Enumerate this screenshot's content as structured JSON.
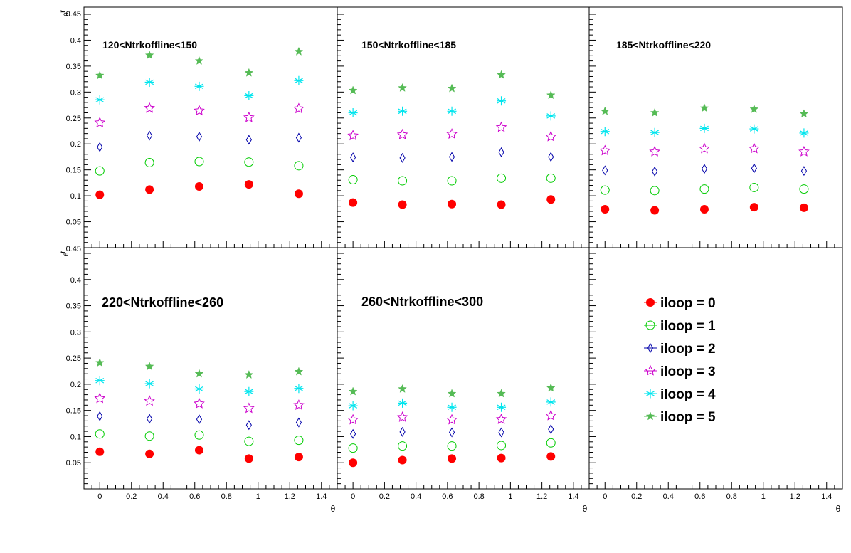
{
  "chart_data": {
    "type": "scatter",
    "x_label": "θ",
    "y_label_top": "r_0",
    "y_label_bottom": "r_θ",
    "x_ticks": [
      "0",
      "0.2",
      "0.4",
      "0.6",
      "0.8",
      "1",
      "1.2",
      "1.4"
    ],
    "y_ticks_top": [
      "0.05",
      "0.1",
      "0.15",
      "0.2",
      "0.25",
      "0.3",
      "0.35",
      "0.4",
      "0.45"
    ],
    "y_ticks_bottom": [
      "0.05",
      "0.1",
      "0.15",
      "0.2",
      "0.25",
      "0.3",
      "0.35",
      "0.4"
    ],
    "x_values": [
      0,
      0.314,
      0.628,
      0.942,
      1.257
    ],
    "xlim": [
      -0.1,
      1.5
    ],
    "ylim": [
      0,
      0.45
    ],
    "grid": false,
    "legend_position": "bottom-right pad",
    "series_styles": [
      {
        "name": "iloop = 0",
        "color": "#ff0000",
        "marker": "filled-circle"
      },
      {
        "name": "iloop = 1",
        "color": "#00cc00",
        "marker": "open-circle"
      },
      {
        "name": "iloop = 2",
        "color": "#0000aa",
        "marker": "open-diamond"
      },
      {
        "name": "iloop = 3",
        "color": "#cc00cc",
        "marker": "open-star"
      },
      {
        "name": "iloop = 4",
        "color": "#00e5ee",
        "marker": "asterisk"
      },
      {
        "name": "iloop = 5",
        "color": "#55bb55",
        "marker": "filled-star"
      }
    ],
    "panels": [
      {
        "label": "120<Ntrkoffline<150",
        "series": [
          [
            0.102,
            0.112,
            0.118,
            0.122,
            0.104
          ],
          [
            0.148,
            0.164,
            0.166,
            0.165,
            0.158
          ],
          [
            0.194,
            0.216,
            0.214,
            0.208,
            0.212
          ],
          [
            0.241,
            0.269,
            0.264,
            0.251,
            0.268
          ],
          [
            0.285,
            0.319,
            0.311,
            0.293,
            0.322
          ],
          [
            0.332,
            0.371,
            0.36,
            0.337,
            0.378
          ]
        ]
      },
      {
        "label": "150<Ntrkoffline<185",
        "series": [
          [
            0.087,
            0.083,
            0.084,
            0.083,
            0.093
          ],
          [
            0.131,
            0.129,
            0.129,
            0.134,
            0.134
          ],
          [
            0.174,
            0.173,
            0.175,
            0.184,
            0.175
          ],
          [
            0.216,
            0.218,
            0.219,
            0.232,
            0.214
          ],
          [
            0.26,
            0.263,
            0.263,
            0.283,
            0.254
          ],
          [
            0.303,
            0.308,
            0.307,
            0.333,
            0.294
          ]
        ]
      },
      {
        "label": "185<Ntrkoffline<220",
        "series": [
          [
            0.074,
            0.072,
            0.074,
            0.078,
            0.077
          ],
          [
            0.111,
            0.11,
            0.113,
            0.116,
            0.113
          ],
          [
            0.149,
            0.147,
            0.152,
            0.153,
            0.148
          ],
          [
            0.187,
            0.185,
            0.191,
            0.191,
            0.185
          ],
          [
            0.224,
            0.222,
            0.23,
            0.229,
            0.221
          ],
          [
            0.263,
            0.26,
            0.269,
            0.267,
            0.258
          ]
        ]
      },
      {
        "label": "220<Ntrkoffline<260",
        "series": [
          [
            0.071,
            0.067,
            0.074,
            0.058,
            0.061
          ],
          [
            0.105,
            0.101,
            0.103,
            0.091,
            0.093
          ],
          [
            0.139,
            0.134,
            0.133,
            0.122,
            0.127
          ],
          [
            0.173,
            0.168,
            0.163,
            0.154,
            0.16
          ],
          [
            0.207,
            0.201,
            0.191,
            0.186,
            0.192
          ],
          [
            0.241,
            0.234,
            0.22,
            0.218,
            0.224
          ]
        ]
      },
      {
        "label": "260<Ntrkoffline<300",
        "series": [
          [
            0.05,
            0.055,
            0.058,
            0.059,
            0.062
          ],
          [
            0.078,
            0.082,
            0.082,
            0.083,
            0.088
          ],
          [
            0.105,
            0.109,
            0.108,
            0.108,
            0.114
          ],
          [
            0.132,
            0.137,
            0.132,
            0.133,
            0.14
          ],
          [
            0.159,
            0.164,
            0.156,
            0.156,
            0.166
          ],
          [
            0.186,
            0.191,
            0.182,
            0.182,
            0.193
          ]
        ]
      }
    ]
  }
}
